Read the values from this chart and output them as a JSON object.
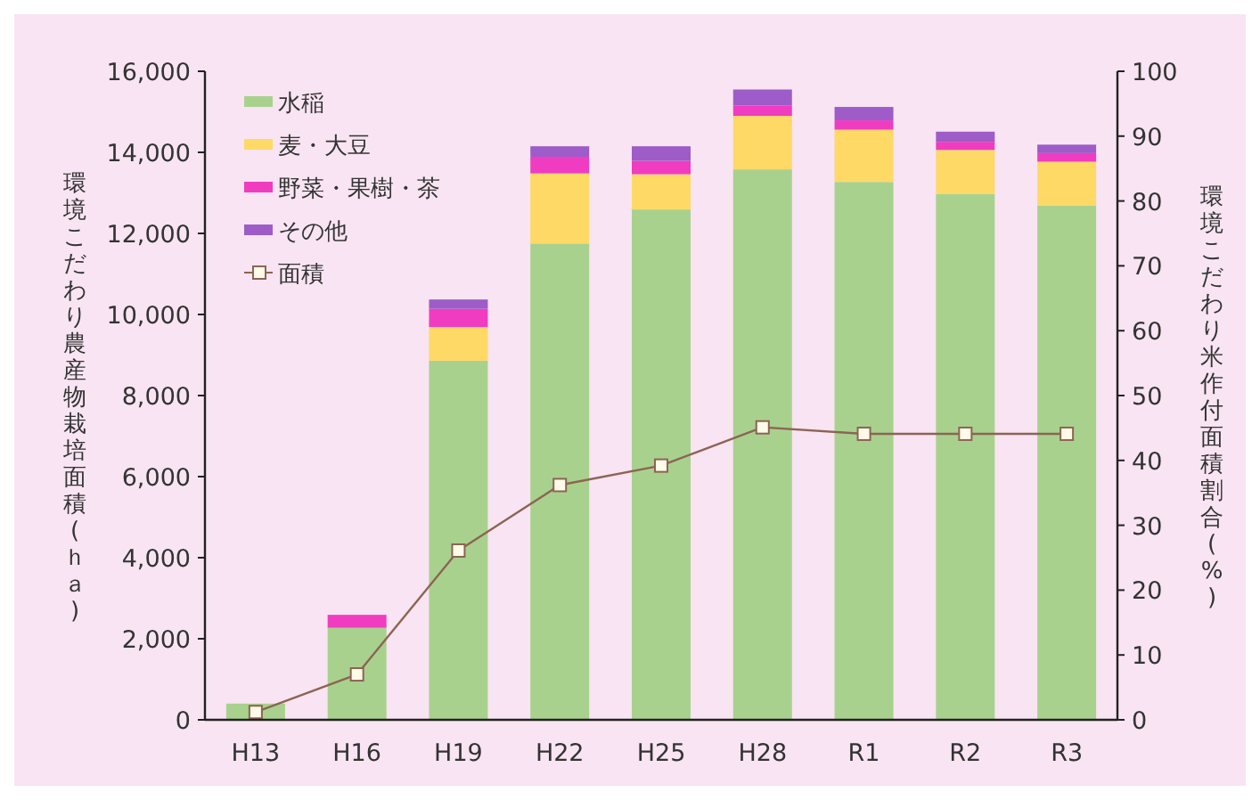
{
  "chart_data": {
    "type": "bar",
    "stacked": true,
    "legend": "top left",
    "categories": [
      "H13",
      "H16",
      "H19",
      "H22",
      "H25",
      "H28",
      "R1",
      "R2",
      "R3"
    ],
    "ylabel": "環境こだわり農産物栽培面積(ｈａ)",
    "y2label": "環境こだわり米作付面積割合(%)",
    "ylim": [
      0,
      16000
    ],
    "yticks": [
      0,
      {
        "value": 2000,
        "label": "2,000"
      },
      {
        "value": 4000,
        "label": "4,000"
      },
      {
        "value": 6000,
        "label": "6,000"
      },
      {
        "value": 8000,
        "label": "8,000"
      },
      {
        "value": 10000,
        "label": "10,000"
      },
      {
        "value": 12000,
        "label": "12,000"
      },
      {
        "value": 14000,
        "label": "14,000"
      },
      {
        "value": 16000,
        "label": "16,000"
      }
    ],
    "y2lim": [
      0,
      100
    ],
    "y2ticks": [
      0,
      10,
      20,
      30,
      40,
      50,
      60,
      70,
      80,
      90,
      100
    ],
    "series": [
      {
        "name": "水稲",
        "color": "#a9d18e",
        "values": [
          400,
          2270,
          8860,
          11750,
          12590,
          13580,
          13270,
          12970,
          12690
        ]
      },
      {
        "name": "麦・大豆",
        "color": "#ffd966",
        "values": [
          0,
          0,
          830,
          1730,
          870,
          1320,
          1290,
          1090,
          1080
        ]
      },
      {
        "name": "野菜・果樹・茶",
        "color": "#f03cc0",
        "values": [
          0,
          320,
          450,
          410,
          330,
          250,
          230,
          200,
          210
        ]
      },
      {
        "name": "その他",
        "color": "#9e5cc8",
        "values": [
          0,
          0,
          230,
          260,
          360,
          400,
          330,
          250,
          210
        ]
      },
      {
        "name": "面積",
        "type": "line",
        "axis": "y2",
        "marker": "square",
        "color": "#8c6454",
        "values": [
          1.2,
          7.0,
          26.1,
          36.2,
          39.2,
          45.1,
          44.1,
          44.1,
          44.1
        ]
      }
    ]
  }
}
